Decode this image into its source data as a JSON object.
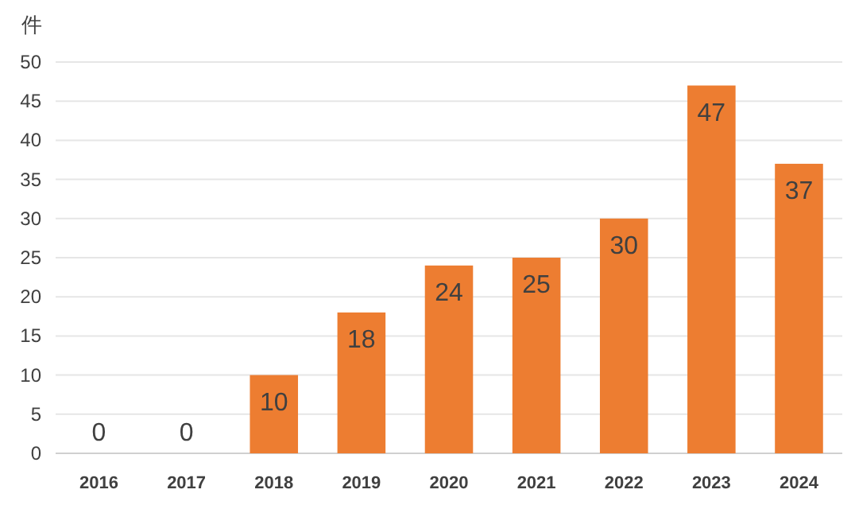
{
  "chart_data": {
    "type": "bar",
    "ylabel": "件",
    "categories": [
      "2016",
      "2017",
      "2018",
      "2019",
      "2020",
      "2021",
      "2022",
      "2023",
      "2024"
    ],
    "values": [
      0,
      0,
      10,
      18,
      24,
      25,
      30,
      47,
      37
    ],
    "color": "#ed7d31",
    "ylim": [
      0,
      50
    ],
    "yticks": [
      0,
      5,
      10,
      15,
      20,
      25,
      30,
      35,
      40,
      45,
      50
    ],
    "grid": "y",
    "data_labels": true
  }
}
